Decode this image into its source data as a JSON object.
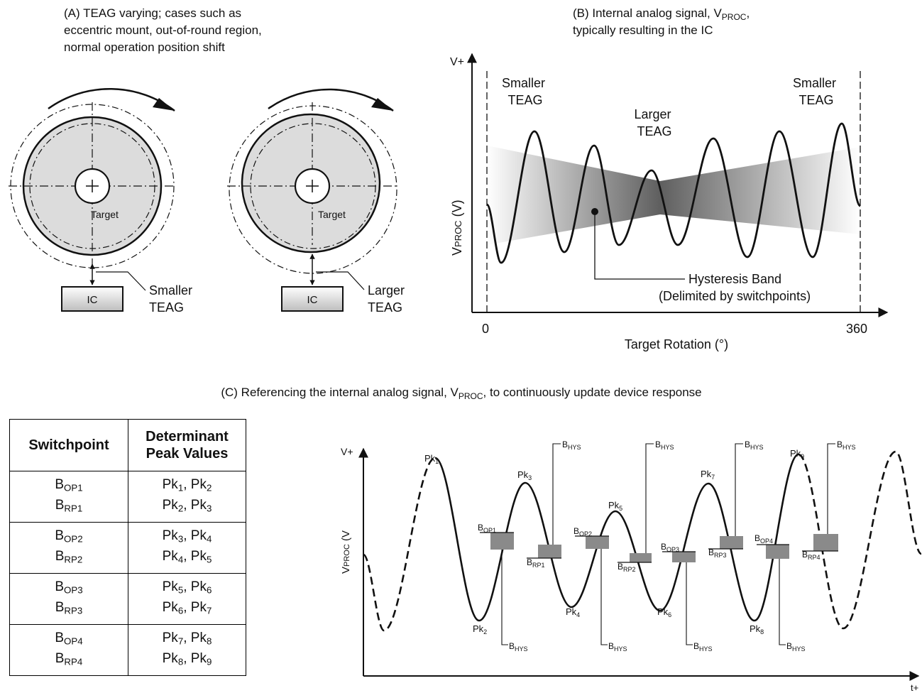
{
  "panel_a": {
    "title_lines": [
      "(A) TEAG varying; cases such as",
      "eccentric mount, out-of-round region,",
      "normal operation position shift"
    ],
    "left": {
      "target_label": "Target",
      "ic_label": "IC",
      "gap_label_lines": [
        "Smaller",
        "TEAG"
      ]
    },
    "right": {
      "target_label": "Target",
      "ic_label": "IC",
      "gap_label_lines": [
        "Larger",
        "TEAG"
      ]
    }
  },
  "panel_b": {
    "title_line1_pre": "(B) Internal analog signal, V",
    "title_line1_sub": "PROC",
    "title_line1_post": ",",
    "title_line2": "typically resulting in the IC",
    "y_top_label": "V+",
    "y_axis_main": "V",
    "y_axis_sub": "PROC",
    "y_axis_unit": " (V)",
    "x_axis_label": "Target Rotation (°)",
    "x_tick_start": "0",
    "x_tick_end": "360",
    "region_left": [
      "Smaller",
      "TEAG"
    ],
    "region_mid": [
      "Larger",
      "TEAG"
    ],
    "region_right": [
      "Smaller",
      "TEAG"
    ],
    "callout": [
      "Hysteresis Band",
      "(Delimited by switchpoints)"
    ]
  },
  "panel_c": {
    "title_pre": "(C) Referencing the internal analog signal, V",
    "title_sub": "PROC",
    "title_post": ", to continuously update device response",
    "table": {
      "header_col1": "Switchpoint",
      "header_col2_lines": [
        "Determinant",
        "Peak Values"
      ],
      "rows": [
        {
          "sp": [
            {
              "b": "B",
              "s": "OP1"
            },
            {
              "b": "B",
              "s": "RP1"
            }
          ],
          "pk": [
            [
              "Pk",
              "1",
              ", Pk",
              "2"
            ],
            [
              "Pk",
              "2",
              ", Pk",
              "3"
            ]
          ]
        },
        {
          "sp": [
            {
              "b": "B",
              "s": "OP2"
            },
            {
              "b": "B",
              "s": "RP2"
            }
          ],
          "pk": [
            [
              "Pk",
              "3",
              ", Pk",
              "4"
            ],
            [
              "Pk",
              "4",
              ", Pk",
              "5"
            ]
          ]
        },
        {
          "sp": [
            {
              "b": "B",
              "s": "OP3"
            },
            {
              "b": "B",
              "s": "RP3"
            }
          ],
          "pk": [
            [
              "Pk",
              "5",
              ", Pk",
              "6"
            ],
            [
              "Pk",
              "6",
              ", Pk",
              "7"
            ]
          ]
        },
        {
          "sp": [
            {
              "b": "B",
              "s": "OP4"
            },
            {
              "b": "B",
              "s": "RP4"
            }
          ],
          "pk": [
            [
              "Pk",
              "7",
              ", Pk",
              "8"
            ],
            [
              "Pk",
              "8",
              ", Pk",
              "9"
            ]
          ]
        }
      ]
    },
    "plot": {
      "y_top_label": "V+",
      "y_axis_main": "V",
      "y_axis_sub": "PROC",
      "y_axis_unit": " (V",
      "x_end_label": "t+",
      "peaks": [
        {
          "b": "Pk",
          "s": "1"
        },
        {
          "b": "Pk",
          "s": "2"
        },
        {
          "b": "Pk",
          "s": "3"
        },
        {
          "b": "Pk",
          "s": "4"
        },
        {
          "b": "Pk",
          "s": "5"
        },
        {
          "b": "Pk",
          "s": "6"
        },
        {
          "b": "Pk",
          "s": "7"
        },
        {
          "b": "Pk",
          "s": "8"
        },
        {
          "b": "Pk",
          "s": "9"
        }
      ],
      "op_labels": [
        {
          "b": "B",
          "s": "OP1"
        },
        {
          "b": "B",
          "s": "OP2"
        },
        {
          "b": "B",
          "s": "OP3"
        },
        {
          "b": "B",
          "s": "OP4"
        }
      ],
      "rp_labels": [
        {
          "b": "B",
          "s": "RP1"
        },
        {
          "b": "B",
          "s": "RP2"
        },
        {
          "b": "B",
          "s": "RP3"
        },
        {
          "b": "B",
          "s": "RP4"
        }
      ],
      "hys_label": {
        "b": "B",
        "s": "HYS"
      }
    }
  },
  "colors": {
    "stroke": "#111111",
    "target_fill": "#dcdcdc",
    "band_dark": "#5f5f5f",
    "band_light": "#ffffff",
    "hys_box": "#8a8a8a"
  }
}
